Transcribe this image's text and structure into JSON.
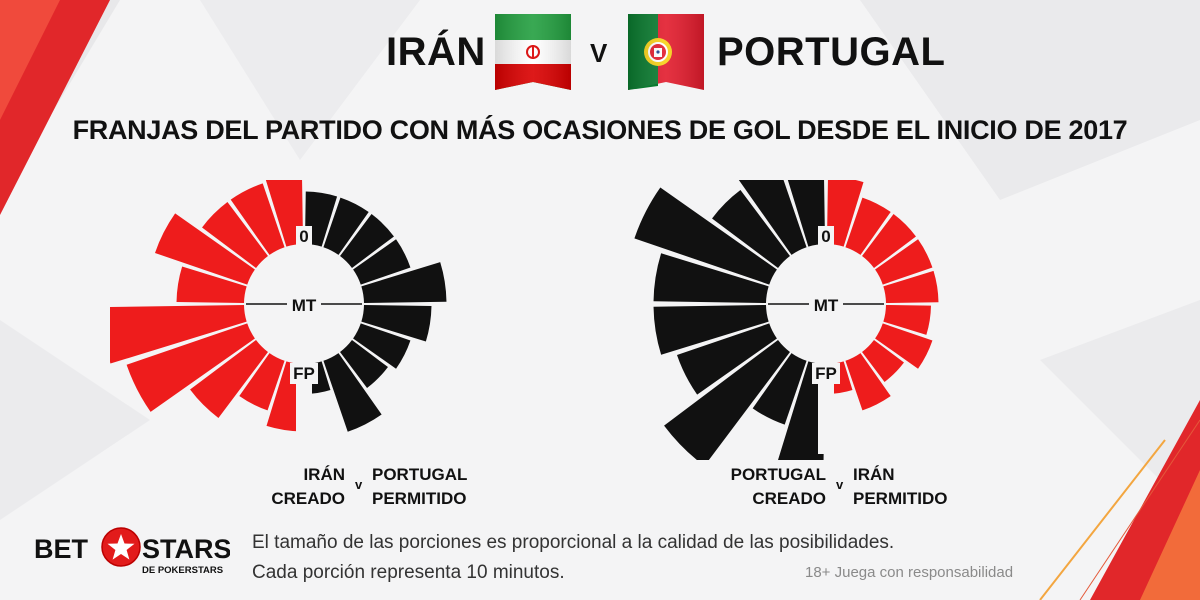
{
  "header": {
    "team_left": "IRÁN",
    "vs": "V",
    "team_right": "PORTUGAL"
  },
  "subtitle": "FRANJAS DEL PARTIDO CON MÁS OCASIONES DE GOL DESDE EL INICIO DE 2017",
  "colors": {
    "red": "#ee1c1c",
    "black": "#111111"
  },
  "chart_data": [
    {
      "type": "radial-bar",
      "center_labels": {
        "top": "0",
        "middle": "MT",
        "bottom": "FP"
      },
      "segment_minutes": 10,
      "series": [
        {
          "values": [
            0.55,
            0.45,
            0.45,
            0.65,
            0.45,
            0.95,
            0.85,
            0.55,
            0.35,
            0.45
          ],
          "color": "#ee1c1c"
        },
        {
          "values": [
            0.35,
            0.35,
            0.35,
            0.35,
            0.55,
            0.45,
            0.35,
            0.3,
            0.5,
            0.2
          ],
          "color": "#111111"
        }
      ],
      "legend": {
        "left_team": "IRÁN",
        "left_sub": "CREADO",
        "v": "v",
        "right_team": "PORTUGAL",
        "right_sub": "PERMITIDO"
      }
    },
    {
      "type": "radial-bar",
      "center_labels": {
        "top": "0",
        "middle": "MT",
        "bottom": "FP"
      },
      "segment_minutes": 10,
      "series": [
        {
          "values": [
            0.85,
            0.75,
            0.55,
            0.95,
            0.75,
            0.75,
            0.65,
            0.95,
            0.45,
            0.95
          ],
          "color": "#111111"
        },
        {
          "values": [
            0.45,
            0.35,
            0.35,
            0.35,
            0.35,
            0.3,
            0.35,
            0.25,
            0.35,
            0.2
          ],
          "color": "#ee1c1c"
        }
      ],
      "legend": {
        "left_team": "PORTUGAL",
        "left_sub": "CREADO",
        "v": "v",
        "right_team": "IRÁN",
        "right_sub": "PERMITIDO"
      }
    }
  ],
  "footer": {
    "logo_left": "BET",
    "logo_right": "STARS",
    "logo_sub": "DE POKERSTARS",
    "note1": "El tamaño de las porciones es proporcional a la calidad de las posibilidades.",
    "note2": "Cada porción representa 10 minutos.",
    "responsible": "18+ Juega con responsabilidad"
  }
}
